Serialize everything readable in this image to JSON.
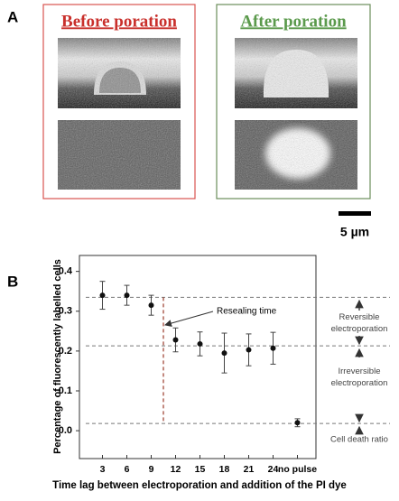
{
  "panel_a": {
    "label": "A",
    "before_title": "Before poration",
    "after_title": "After poration",
    "scale_bar": "5 µm"
  },
  "panel_b": {
    "label": "B"
  },
  "chart_data": {
    "type": "errorbar",
    "categories": [
      "3",
      "6",
      "9",
      "12",
      "15",
      "18",
      "21",
      "24",
      "no pulse"
    ],
    "values": [
      0.34,
      0.34,
      0.315,
      0.228,
      0.218,
      0.195,
      0.203,
      0.207,
      0.02
    ],
    "errors": [
      0.035,
      0.025,
      0.025,
      0.03,
      0.03,
      0.05,
      0.04,
      0.04,
      0.01
    ],
    "color": "#111111",
    "ylim": [
      -0.07,
      0.44
    ],
    "yticks": [
      {
        "value": 0,
        "label": "0.0"
      },
      0.1,
      0.2,
      0.3,
      0.4
    ],
    "hlines": [
      0.335,
      0.213,
      0.018
    ],
    "y_label": "Percentage of fluorescently labelled cells",
    "x_label": "Time lag between electroporation and addition of the PI dye",
    "annotation": "Resealing time",
    "region_labels": [
      [
        "Reversible",
        "electroporation"
      ],
      [
        "Irreversible",
        "electroporation"
      ],
      [
        "Cell death ratio"
      ]
    ]
  }
}
